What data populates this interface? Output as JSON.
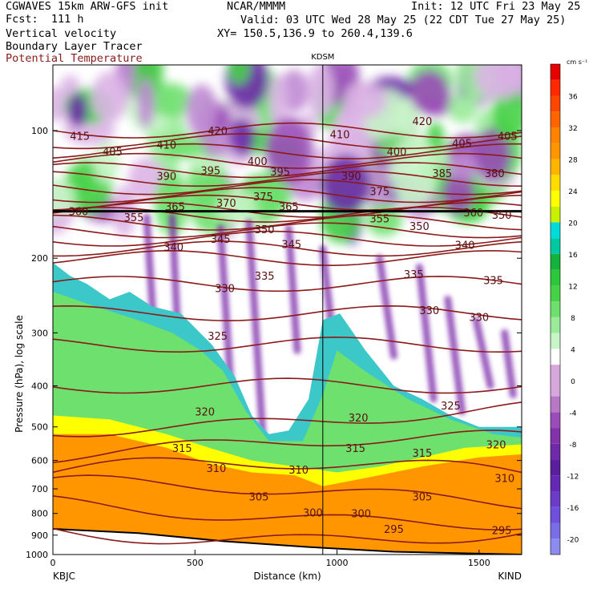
{
  "header": {
    "model": "CGWAVES 15km ARW-GFS init",
    "forecast": "Fcst:  111 h",
    "org": "NCAR/MMMM",
    "init": "Init: 12 UTC Fri 23 May 25",
    "valid": "Valid: 03 UTC Wed 28 May 25 (22 CDT Tue 27 May 25)",
    "xy": "XY= 150.5,136.9 to 260.4,139.6",
    "fields": [
      "Vertical velocity",
      "Boundary Layer Tracer",
      "Potential Temperature"
    ]
  },
  "chart_data": {
    "type": "heatmap",
    "title": "",
    "xlabel": "Distance (km)",
    "ylabel": "Pressure (hPa), log scale",
    "xlim": [
      0,
      1650
    ],
    "ylim": [
      1000,
      70
    ],
    "y_scale": "log",
    "x_ticks": [
      0,
      500,
      1000,
      1500
    ],
    "y_ticks": [
      100,
      200,
      300,
      400,
      500,
      600,
      700,
      800,
      900,
      1000
    ],
    "endpoints": {
      "left": "KBJC",
      "right": "KIND"
    },
    "marker": {
      "label": "KDSM",
      "x_km": 950
    },
    "colorbar": {
      "units": "cm s⁻¹",
      "tick_labels": [
        -20,
        -16,
        -12,
        -8,
        -4,
        0,
        4,
        8,
        12,
        16,
        20,
        24,
        28,
        32,
        36
      ],
      "levels": [
        -22,
        -20,
        -18,
        -16,
        -14,
        -12,
        -10,
        -8,
        -6,
        -4,
        -2,
        2,
        4,
        6,
        8,
        10,
        12,
        14,
        16,
        18,
        20,
        22,
        24,
        26,
        28,
        30,
        32,
        34,
        36,
        38,
        40
      ],
      "colors": [
        "#8c8cf0",
        "#7a6ee6",
        "#6e50dc",
        "#6a3cc8",
        "#6428b4",
        "#5a1e9e",
        "#6e2aa8",
        "#8232aa",
        "#9a4cb8",
        "#b878c8",
        "#d6a8dc",
        "#ffffff",
        "#c8f5c8",
        "#9aeb9a",
        "#6ee06e",
        "#46d246",
        "#2ac83a",
        "#14b43c",
        "#00c8a0",
        "#00dcdc",
        "#c8f000",
        "#ffff00",
        "#ffdc00",
        "#ffb400",
        "#ff9600",
        "#ff8200",
        "#ff6400",
        "#ff4600",
        "#ff2800",
        "#e60000"
      ]
    },
    "theta_labels": [
      {
        "v": 415,
        "x": 95,
        "p": 103
      },
      {
        "v": 405,
        "x": 210,
        "p": 112
      },
      {
        "v": 410,
        "x": 400,
        "p": 108
      },
      {
        "v": 420,
        "x": 580,
        "p": 100
      },
      {
        "v": 410,
        "x": 1010,
        "p": 102
      },
      {
        "v": 420,
        "x": 1300,
        "p": 95
      },
      {
        "v": 400,
        "x": 1210,
        "p": 112
      },
      {
        "v": 405,
        "x": 1440,
        "p": 107
      },
      {
        "v": 405,
        "x": 1600,
        "p": 103
      },
      {
        "v": 390,
        "x": 400,
        "p": 128
      },
      {
        "v": 395,
        "x": 555,
        "p": 124
      },
      {
        "v": 400,
        "x": 720,
        "p": 118
      },
      {
        "v": 395,
        "x": 800,
        "p": 125
      },
      {
        "v": 390,
        "x": 1050,
        "p": 128
      },
      {
        "v": 385,
        "x": 1370,
        "p": 126
      },
      {
        "v": 380,
        "x": 1555,
        "p": 126
      },
      {
        "v": 375,
        "x": 740,
        "p": 143
      },
      {
        "v": 375,
        "x": 1150,
        "p": 139
      },
      {
        "v": 370,
        "x": 610,
        "p": 148
      },
      {
        "v": 360,
        "x": 90,
        "p": 155
      },
      {
        "v": 355,
        "x": 285,
        "p": 160
      },
      {
        "v": 365,
        "x": 430,
        "p": 151
      },
      {
        "v": 365,
        "x": 830,
        "p": 151
      },
      {
        "v": 355,
        "x": 1150,
        "p": 161
      },
      {
        "v": 360,
        "x": 1480,
        "p": 156
      },
      {
        "v": 350,
        "x": 1580,
        "p": 158
      },
      {
        "v": 350,
        "x": 745,
        "p": 171
      },
      {
        "v": 350,
        "x": 1290,
        "p": 168
      },
      {
        "v": 345,
        "x": 590,
        "p": 180
      },
      {
        "v": 345,
        "x": 840,
        "p": 185
      },
      {
        "v": 340,
        "x": 425,
        "p": 188
      },
      {
        "v": 340,
        "x": 1450,
        "p": 186
      },
      {
        "v": 335,
        "x": 745,
        "p": 220
      },
      {
        "v": 335,
        "x": 1270,
        "p": 218
      },
      {
        "v": 335,
        "x": 1550,
        "p": 225
      },
      {
        "v": 330,
        "x": 605,
        "p": 235
      },
      {
        "v": 330,
        "x": 1325,
        "p": 265
      },
      {
        "v": 330,
        "x": 1500,
        "p": 275
      },
      {
        "v": 325,
        "x": 580,
        "p": 305
      },
      {
        "v": 325,
        "x": 1400,
        "p": 445
      },
      {
        "v": 320,
        "x": 535,
        "p": 460
      },
      {
        "v": 320,
        "x": 1075,
        "p": 475
      },
      {
        "v": 320,
        "x": 1560,
        "p": 550
      },
      {
        "v": 315,
        "x": 455,
        "p": 560
      },
      {
        "v": 315,
        "x": 1065,
        "p": 560
      },
      {
        "v": 315,
        "x": 1300,
        "p": 575
      },
      {
        "v": 310,
        "x": 575,
        "p": 625
      },
      {
        "v": 310,
        "x": 865,
        "p": 630
      },
      {
        "v": 310,
        "x": 1590,
        "p": 660
      },
      {
        "v": 305,
        "x": 725,
        "p": 730
      },
      {
        "v": 305,
        "x": 1300,
        "p": 730
      },
      {
        "v": 300,
        "x": 915,
        "p": 795
      },
      {
        "v": 300,
        "x": 1085,
        "p": 800
      },
      {
        "v": 295,
        "x": 1200,
        "p": 870
      },
      {
        "v": 295,
        "x": 1580,
        "p": 875
      }
    ]
  }
}
